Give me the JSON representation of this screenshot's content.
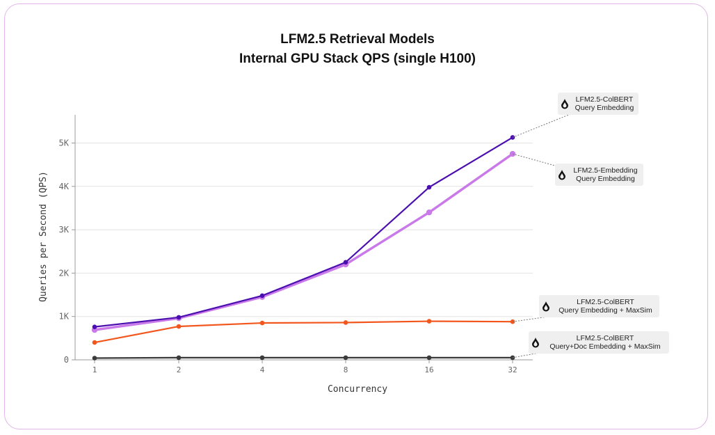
{
  "chart_data": {
    "type": "line",
    "title_lines": [
      "LFM2.5 Retrieval Models",
      "Internal GPU Stack QPS (single H100)"
    ],
    "xlabel": "Concurrency",
    "ylabel": "Queries per Second (QPS)",
    "x": [
      "1",
      "2",
      "4",
      "8",
      "16",
      "32"
    ],
    "y_ticks": [
      0,
      1000,
      2000,
      3000,
      4000,
      5000
    ],
    "y_tick_labels": [
      "0",
      "1K",
      "2K",
      "3K",
      "4K",
      "5K"
    ],
    "ylim": [
      0,
      5650
    ],
    "grid": "horizontal",
    "legend": "right-side callout labels",
    "series": [
      {
        "name": "LFM2.5-ColBERT Query Embedding",
        "label_lines": [
          "LFM2.5-ColBERT",
          "Query Embedding"
        ],
        "color": "#4b0fb0",
        "values": [
          760,
          980,
          1480,
          2250,
          3980,
          5130
        ]
      },
      {
        "name": "LFM2.5-Embedding Query Embedding",
        "label_lines": [
          "LFM2.5-Embedding",
          "Query Embedding"
        ],
        "color": "#c97ae8",
        "values": [
          690,
          960,
          1450,
          2200,
          3400,
          4750
        ]
      },
      {
        "name": "LFM2.5-ColBERT Query Embedding + MaxSim",
        "label_lines": [
          "LFM2.5-ColBERT",
          "Query Embedding + MaxSim"
        ],
        "color": "#f2561d",
        "values": [
          400,
          770,
          850,
          860,
          890,
          880
        ]
      },
      {
        "name": "LFM2.5-ColBERT Query+Doc Embedding + MaxSim",
        "label_lines": [
          "LFM2.5-ColBERT",
          "Query+Doc Embedding + MaxSim"
        ],
        "color": "#3a3a3a",
        "values": [
          40,
          50,
          50,
          50,
          50,
          50
        ]
      }
    ]
  },
  "colors": {
    "frame_border": "#e2b6ea",
    "grid": "#e3e3e3",
    "axis": "#999999",
    "tick_text": "#666666",
    "label_box": "#efefef",
    "leader_line": "#777777"
  },
  "icons": {
    "label_icon": "drop-logo-icon"
  }
}
